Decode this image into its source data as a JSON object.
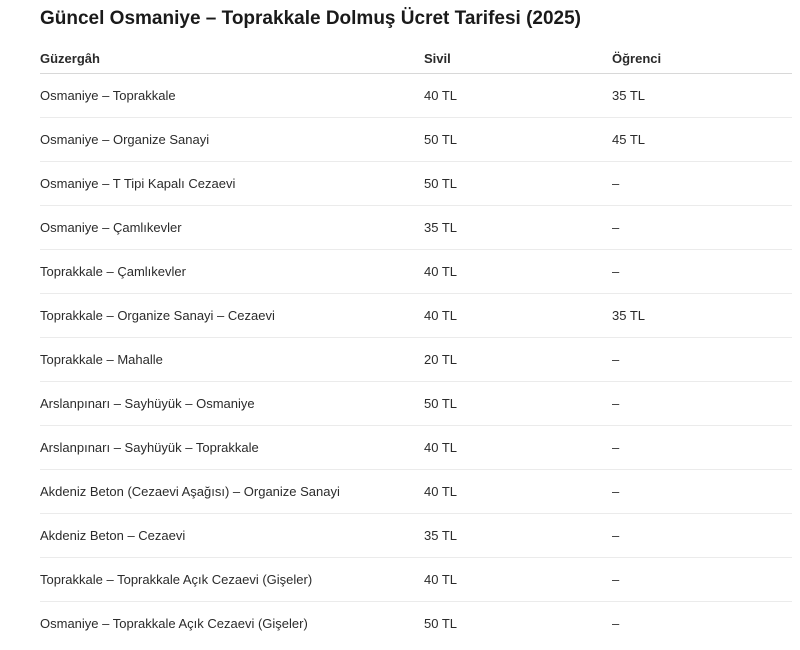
{
  "title": "Güncel Osmaniye – Toprakkale Dolmuş Ücret Tarifesi (2025)",
  "table": {
    "headers": [
      "Güzergâh",
      "Sivil",
      "Öğrenci"
    ],
    "rows": [
      [
        "Osmaniye – Toprakkale",
        "40 TL",
        "35 TL"
      ],
      [
        "Osmaniye – Organize Sanayi",
        "50 TL",
        "45 TL"
      ],
      [
        "Osmaniye – T Tipi Kapalı Cezaevi",
        "50 TL",
        "–"
      ],
      [
        "Osmaniye – Çamlıkevler",
        "35 TL",
        "–"
      ],
      [
        "Toprakkale – Çamlıkevler",
        "40 TL",
        "–"
      ],
      [
        "Toprakkale – Organize Sanayi – Cezaevi",
        "40 TL",
        "35 TL"
      ],
      [
        "Toprakkale – Mahalle",
        "20 TL",
        "–"
      ],
      [
        "Arslanpınarı – Sayhüyük – Osmaniye",
        "50 TL",
        "–"
      ],
      [
        "Arslanpınarı – Sayhüyük – Toprakkale",
        "40 TL",
        "–"
      ],
      [
        "Akdeniz Beton (Cezaevi Aşağısı) – Organize Sanayi",
        "40 TL",
        "–"
      ],
      [
        "Akdeniz Beton – Cezaevi",
        "35 TL",
        "–"
      ],
      [
        "Toprakkale – Toprakkale Açık Cezaevi (Gişeler)",
        "40 TL",
        "–"
      ],
      [
        "Osmaniye – Toprakkale Açık Cezaevi (Gişeler)",
        "50 TL",
        "–"
      ]
    ]
  }
}
